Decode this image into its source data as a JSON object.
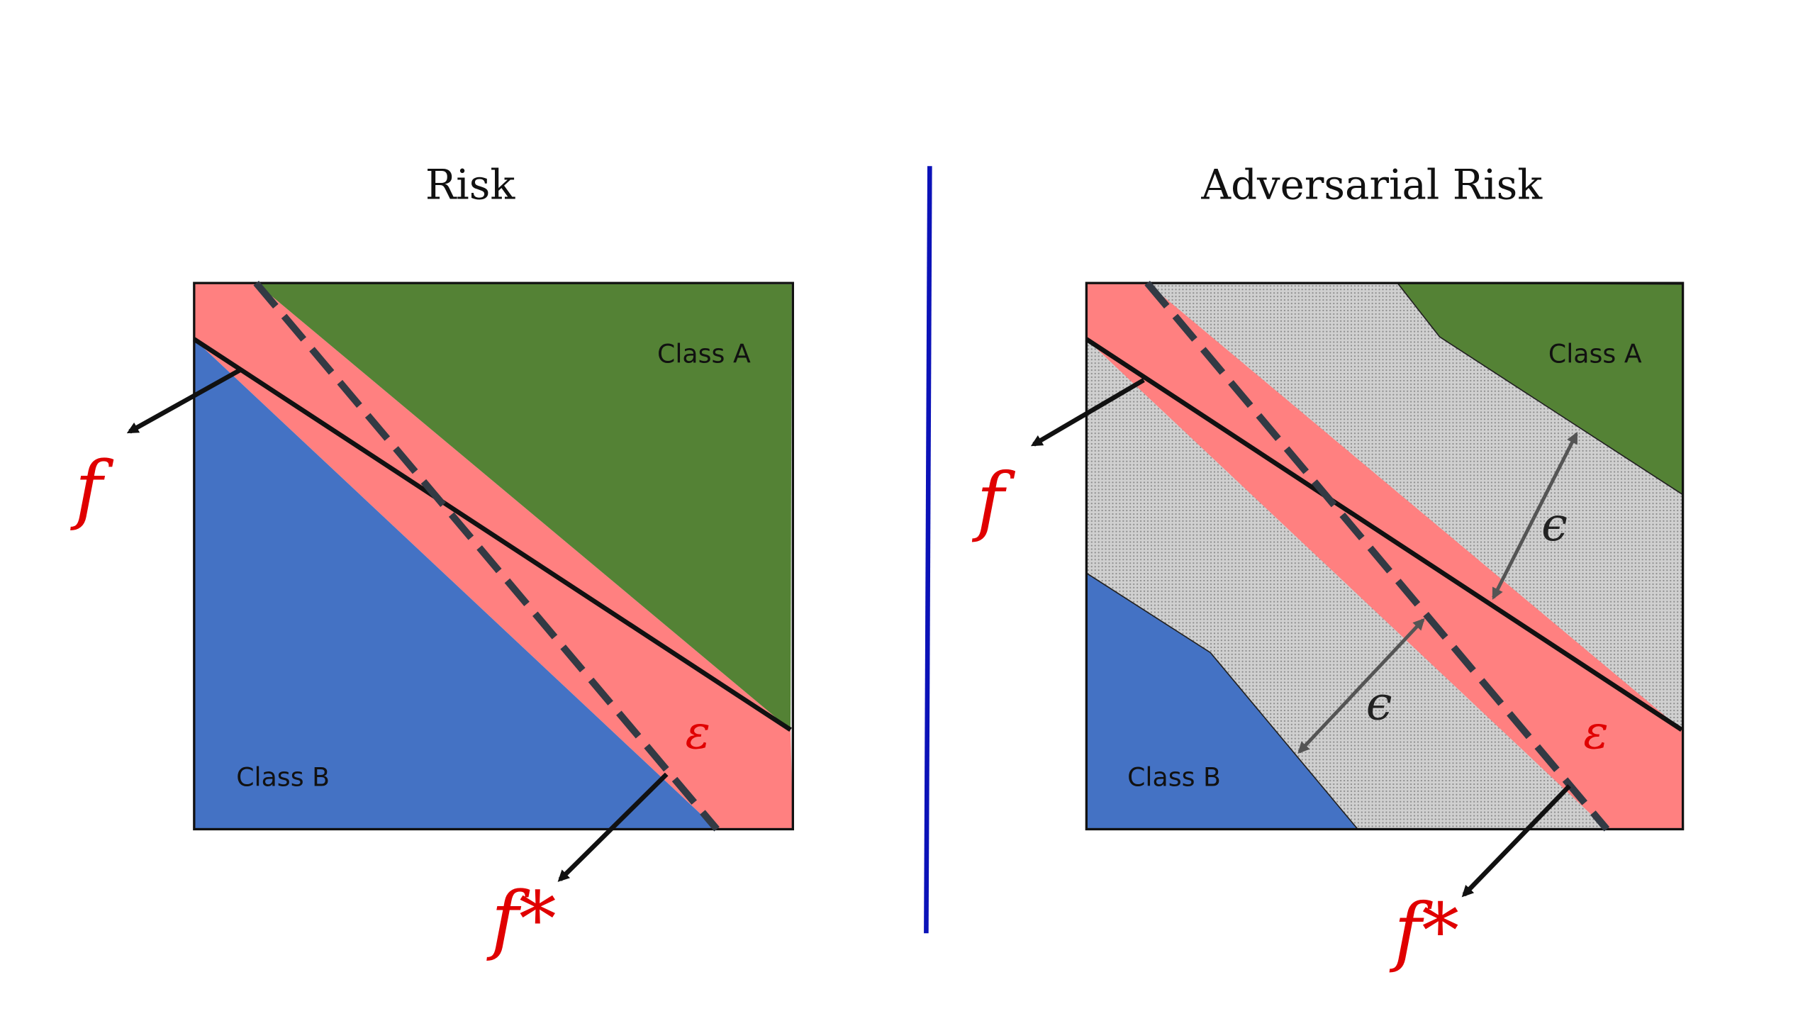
{
  "panels": {
    "left": {
      "title": "Risk",
      "class_a": "Class A",
      "class_b": "Class B",
      "f_label": "f",
      "fstar_label": "f*",
      "error_label": "ε"
    },
    "right": {
      "title": "Adversarial Risk",
      "class_a": "Class A",
      "class_b": "Class B",
      "f_label": "f",
      "fstar_label": "f*",
      "error_label": "ε",
      "perturbation_label_upper": "ϵ",
      "perturbation_label_lower": "ϵ"
    }
  },
  "colors": {
    "class_a": "#548235",
    "class_b": "#4472c4",
    "error_region": "#ff8080",
    "adversarial_band": "#c8c8c8",
    "divider": "#0b12b8",
    "label_red": "#e00000"
  }
}
